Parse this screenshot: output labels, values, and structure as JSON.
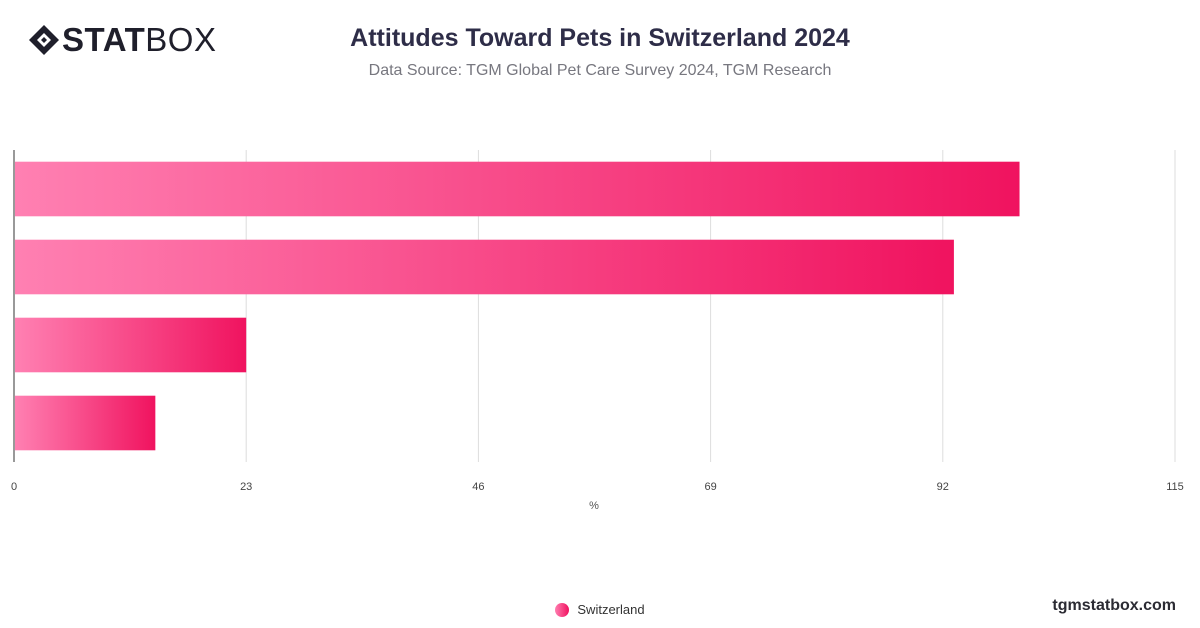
{
  "brand": {
    "logo_bold": "STAT",
    "logo_light": "BOX",
    "website": "tgmstatbox.com"
  },
  "header": {
    "title": "Attitudes Toward Pets in Switzerland 2024",
    "subtitle": "Data Source: TGM Global Pet Care Survey 2024, TGM Research"
  },
  "legend": {
    "label": "Switzerland"
  },
  "colors": {
    "bar_start": "#ff80b2",
    "bar_end": "#f0135f",
    "grid": "#dddddd",
    "axis": "#333333",
    "title": "#2e2d48"
  },
  "chart_data": {
    "type": "bar",
    "orientation": "horizontal",
    "categories": [
      "",
      "",
      "",
      ""
    ],
    "series": [
      {
        "name": "Switzerland",
        "values": [
          99.6,
          93.1,
          23.0,
          14.0
        ]
      }
    ],
    "xlabel": "%",
    "ylabel": "",
    "xlim": [
      0,
      115
    ],
    "xticks": [
      0,
      23,
      46,
      69,
      92,
      115
    ],
    "grid": true,
    "legend_position": "bottom"
  }
}
